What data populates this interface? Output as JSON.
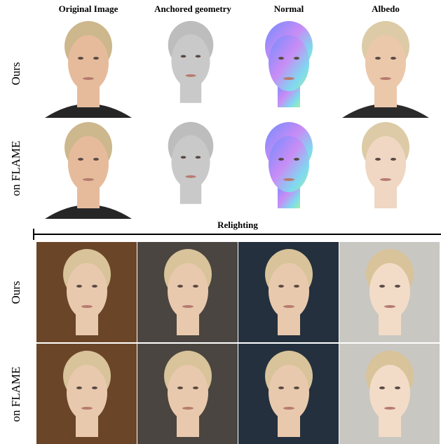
{
  "header": {
    "columns": [
      "Original Image",
      "Anchored geometry",
      "Normal",
      "Albedo"
    ]
  },
  "top_rows": [
    "Ours",
    "on FLAME"
  ],
  "relighting": {
    "title": "Relighting",
    "rows": [
      "Ours",
      "on FLAME"
    ]
  }
}
